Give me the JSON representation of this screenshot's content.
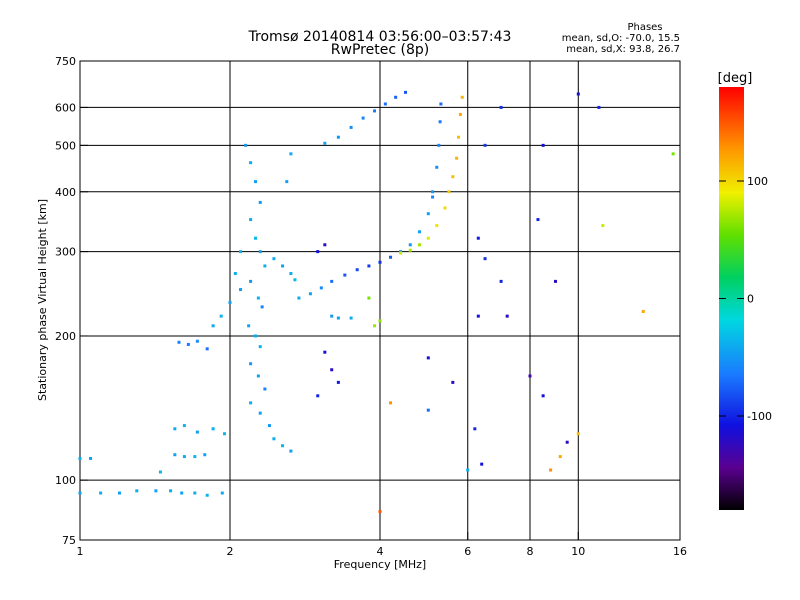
{
  "title": "Tromsø 20140814 03:56:00–03:57:43",
  "subtitle": "RwPretec (8p)",
  "phase_box": {
    "heading": "Phases",
    "line1": "mean, sd,O: -70.0, 15.5",
    "line2": "mean, sd,X:  93.8, 26.7"
  },
  "colorbar": {
    "unit_label": "[deg]",
    "ticks": [
      "100",
      "0",
      "-100"
    ],
    "tick_values": [
      100,
      0,
      -100
    ],
    "range": [
      -180,
      180
    ]
  },
  "chart_data": {
    "type": "scatter",
    "x_scale": "log",
    "y_scale": "log",
    "xlabel": "Frequency [MHz]",
    "ylabel": "Stationary phase Virtual Height [km]",
    "xlim": [
      1,
      16
    ],
    "ylim": [
      75,
      750
    ],
    "xticks": [
      1,
      2,
      4,
      6,
      8,
      10,
      16
    ],
    "xtick_labels": [
      "1",
      "2",
      "4",
      "6",
      "8",
      "10",
      "16"
    ],
    "yticks": [
      75,
      100,
      200,
      300,
      400,
      500,
      600,
      750
    ],
    "ytick_labels": [
      "75",
      "100",
      "200",
      "300",
      "400",
      "500",
      "600",
      "750"
    ],
    "grid": true,
    "grid_x": [
      2,
      4,
      6,
      8,
      10
    ],
    "grid_y": [
      100,
      200,
      300,
      400,
      500,
      600
    ],
    "series": [
      {
        "values": [
          [
            1.0,
            111,
            -40
          ],
          [
            1.05,
            111,
            -45
          ],
          [
            1.0,
            94,
            -45
          ],
          [
            1.1,
            94,
            -40
          ],
          [
            1.2,
            94,
            -45
          ],
          [
            1.3,
            95,
            -40
          ],
          [
            1.42,
            95,
            -45
          ],
          [
            1.52,
            95,
            -40
          ],
          [
            1.6,
            94,
            -45
          ],
          [
            1.7,
            94,
            -40
          ],
          [
            1.8,
            93,
            -35
          ],
          [
            1.93,
            94,
            -40
          ],
          [
            1.45,
            104,
            -35
          ],
          [
            1.55,
            113,
            -45
          ],
          [
            1.62,
            112,
            -40
          ],
          [
            1.7,
            112,
            -35
          ],
          [
            1.78,
            113,
            -45
          ],
          [
            1.55,
            128,
            -40
          ],
          [
            1.62,
            130,
            -35
          ],
          [
            1.72,
            126,
            -45
          ],
          [
            1.85,
            128,
            -40
          ],
          [
            1.95,
            125,
            -35
          ],
          [
            1.58,
            194,
            -60
          ],
          [
            1.65,
            192,
            -65
          ],
          [
            1.72,
            195,
            -55
          ],
          [
            1.8,
            188,
            -70
          ],
          [
            1.85,
            210,
            -40
          ],
          [
            1.92,
            220,
            -35
          ],
          [
            2.0,
            235,
            -45
          ]
        ]
      },
      {
        "values": [
          [
            2.15,
            500,
            -50
          ],
          [
            2.2,
            460,
            -40
          ],
          [
            2.25,
            420,
            -45
          ],
          [
            2.3,
            380,
            -50
          ],
          [
            2.2,
            350,
            -40
          ],
          [
            2.25,
            320,
            -35
          ],
          [
            2.3,
            300,
            -45
          ],
          [
            2.35,
            280,
            -40
          ],
          [
            2.2,
            260,
            -50
          ],
          [
            2.28,
            240,
            -35
          ],
          [
            2.32,
            230,
            -60
          ],
          [
            2.18,
            210,
            -45
          ],
          [
            2.25,
            200,
            -40
          ],
          [
            2.3,
            190,
            -35
          ],
          [
            2.2,
            175,
            -50
          ],
          [
            2.28,
            165,
            -45
          ],
          [
            2.35,
            155,
            -60
          ],
          [
            2.2,
            145,
            -40
          ],
          [
            2.3,
            138,
            -45
          ],
          [
            2.4,
            130,
            -50
          ],
          [
            2.45,
            122,
            -40
          ],
          [
            2.55,
            118,
            -35
          ],
          [
            2.65,
            115,
            -45
          ],
          [
            2.45,
            290,
            -40
          ],
          [
            2.55,
            280,
            -45
          ],
          [
            2.65,
            270,
            -40
          ],
          [
            2.7,
            262,
            -35
          ],
          [
            2.6,
            420,
            -45
          ],
          [
            2.65,
            480,
            -40
          ],
          [
            2.1,
            300,
            -35
          ],
          [
            2.05,
            270,
            -40
          ],
          [
            2.1,
            250,
            -45
          ]
        ]
      },
      {
        "values": [
          [
            2.75,
            240,
            -40
          ],
          [
            2.9,
            245,
            -45
          ],
          [
            3.05,
            252,
            -55
          ],
          [
            3.2,
            260,
            -70
          ],
          [
            3.4,
            268,
            -80
          ],
          [
            3.6,
            275,
            -85
          ],
          [
            3.8,
            280,
            -90
          ],
          [
            4.0,
            285,
            -95
          ],
          [
            4.2,
            292,
            -80
          ],
          [
            4.4,
            300,
            -60
          ],
          [
            4.6,
            310,
            -50
          ],
          [
            4.8,
            330,
            -45
          ],
          [
            5.0,
            360,
            -45
          ],
          [
            5.1,
            400,
            -50
          ],
          [
            5.2,
            450,
            -55
          ],
          [
            5.25,
            500,
            -60
          ],
          [
            5.28,
            560,
            -65
          ],
          [
            5.3,
            610,
            -70
          ]
        ]
      },
      {
        "values": [
          [
            4.4,
            298,
            80
          ],
          [
            4.6,
            302,
            75
          ],
          [
            4.8,
            310,
            70
          ],
          [
            5.0,
            320,
            85
          ],
          [
            5.2,
            340,
            95
          ],
          [
            5.4,
            370,
            100
          ],
          [
            5.5,
            400,
            105
          ],
          [
            5.6,
            430,
            110
          ],
          [
            5.7,
            470,
            115
          ],
          [
            5.75,
            520,
            110
          ],
          [
            5.8,
            580,
            120
          ],
          [
            5.85,
            630,
            115
          ]
        ]
      },
      {
        "values": [
          [
            3.1,
            505,
            -45
          ],
          [
            3.3,
            520,
            -50
          ],
          [
            3.5,
            545,
            -55
          ],
          [
            3.7,
            570,
            -60
          ],
          [
            3.9,
            590,
            -65
          ],
          [
            4.1,
            610,
            -70
          ],
          [
            4.3,
            630,
            -75
          ],
          [
            4.5,
            645,
            -80
          ]
        ]
      },
      {
        "values": [
          [
            3.0,
            300,
            -110
          ],
          [
            3.1,
            310,
            -120
          ],
          [
            3.2,
            220,
            -50
          ],
          [
            3.3,
            218,
            -45
          ],
          [
            3.5,
            218,
            -40
          ],
          [
            3.1,
            185,
            -110
          ],
          [
            3.2,
            170,
            -120
          ],
          [
            3.3,
            160,
            -105
          ],
          [
            3.0,
            150,
            -100
          ],
          [
            3.9,
            210,
            70
          ],
          [
            4.0,
            215,
            65
          ],
          [
            3.8,
            240,
            60
          ],
          [
            6.3,
            320,
            -105
          ],
          [
            6.5,
            290,
            -95
          ],
          [
            7.0,
            260,
            -100
          ],
          [
            6.3,
            220,
            -110
          ],
          [
            7.2,
            220,
            -120
          ],
          [
            6.5,
            500,
            -90
          ],
          [
            7.0,
            600,
            -95
          ],
          [
            8.5,
            500,
            -110
          ],
          [
            8.3,
            350,
            -100
          ],
          [
            9.0,
            260,
            -120
          ],
          [
            8.0,
            165,
            -130
          ],
          [
            8.5,
            150,
            -110
          ],
          [
            9.5,
            120,
            -120
          ],
          [
            10.0,
            640,
            -110
          ],
          [
            11.0,
            600,
            -100
          ],
          [
            11.2,
            340,
            80
          ],
          [
            8.8,
            105,
            130
          ],
          [
            9.2,
            112,
            120
          ],
          [
            10.0,
            125,
            110
          ],
          [
            13.5,
            225,
            120
          ],
          [
            15.5,
            480,
            60
          ],
          [
            5.0,
            180,
            -110
          ],
          [
            5.6,
            160,
            -120
          ],
          [
            6.2,
            128,
            -100
          ],
          [
            6.4,
            108,
            -110
          ],
          [
            6.0,
            105,
            -40
          ],
          [
            4.0,
            86,
            150
          ],
          [
            4.2,
            145,
            130
          ],
          [
            5.1,
            390,
            -60
          ],
          [
            5.0,
            140,
            -70
          ]
        ]
      }
    ]
  }
}
